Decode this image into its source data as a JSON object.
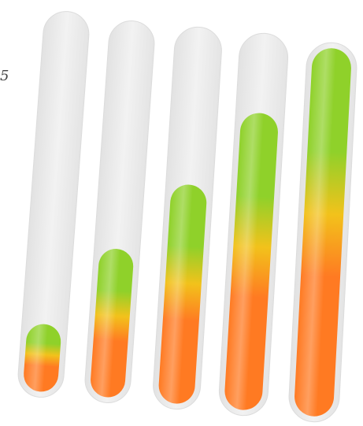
{
  "stray_glyph": "5",
  "colors": {
    "track": "#ececec",
    "track_rim": "#f7f7f7",
    "green": "#8fd12a",
    "yellow": "#f2c21b",
    "orange": "#ff7a22"
  },
  "meters": [
    {
      "name": "level-meter-1",
      "level": 0.18
    },
    {
      "name": "level-meter-2",
      "level": 0.4
    },
    {
      "name": "level-meter-3",
      "level": 0.59
    },
    {
      "name": "level-meter-4",
      "level": 0.8
    },
    {
      "name": "level-meter-5",
      "level": 1.0
    }
  ]
}
